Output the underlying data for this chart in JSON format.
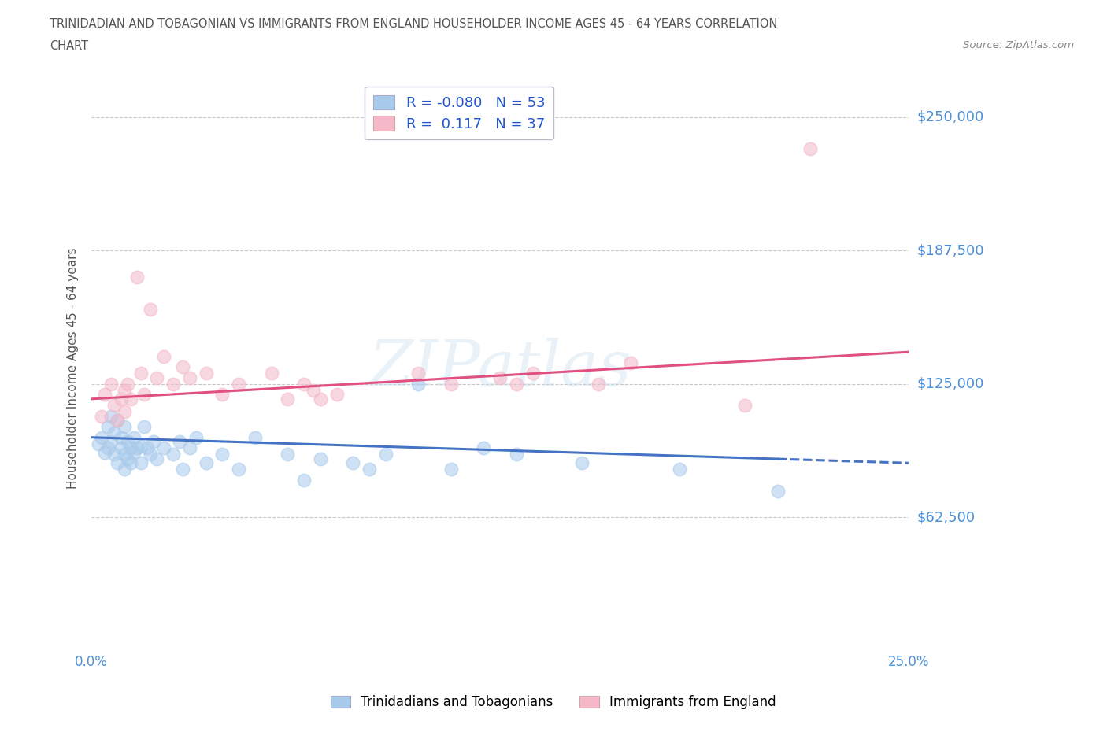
{
  "title_line1": "TRINIDADIAN AND TOBAGONIAN VS IMMIGRANTS FROM ENGLAND HOUSEHOLDER INCOME AGES 45 - 64 YEARS CORRELATION",
  "title_line2": "CHART",
  "source_text": "Source: ZipAtlas.com",
  "ylabel": "Householder Income Ages 45 - 64 years",
  "watermark": "ZIPatlas",
  "xlim": [
    0.0,
    0.25
  ],
  "ylim": [
    0,
    265000
  ],
  "yticks": [
    0,
    62500,
    125000,
    187500,
    250000
  ],
  "ytick_labels": [
    "",
    "$62,500",
    "$125,000",
    "$187,500",
    "$250,000"
  ],
  "xticks": [
    0.0,
    0.05,
    0.1,
    0.15,
    0.2,
    0.25
  ],
  "xtick_labels": [
    "0.0%",
    "",
    "",
    "",
    "",
    "25.0%"
  ],
  "blue_R": -0.08,
  "blue_N": 53,
  "pink_R": 0.117,
  "pink_N": 37,
  "blue_color": "#a8caeb",
  "pink_color": "#f4b8c8",
  "blue_line_color": "#4472c4",
  "pink_line_color": "#e05080",
  "axis_label_color": "#4a90d9",
  "title_color": "#555555",
  "grid_color": "#c8c8c8",
  "blue_scatter_x": [
    0.002,
    0.003,
    0.004,
    0.005,
    0.005,
    0.006,
    0.006,
    0.007,
    0.007,
    0.008,
    0.008,
    0.009,
    0.009,
    0.01,
    0.01,
    0.01,
    0.011,
    0.011,
    0.012,
    0.012,
    0.013,
    0.013,
    0.014,
    0.015,
    0.015,
    0.016,
    0.017,
    0.018,
    0.019,
    0.02,
    0.022,
    0.025,
    0.027,
    0.028,
    0.03,
    0.032,
    0.035,
    0.04,
    0.045,
    0.05,
    0.06,
    0.065,
    0.07,
    0.08,
    0.085,
    0.09,
    0.1,
    0.11,
    0.12,
    0.13,
    0.15,
    0.18,
    0.21
  ],
  "blue_scatter_y": [
    97000,
    100000,
    93000,
    105000,
    95000,
    110000,
    98000,
    92000,
    102000,
    88000,
    108000,
    95000,
    100000,
    85000,
    92000,
    105000,
    90000,
    98000,
    88000,
    95000,
    93000,
    100000,
    95000,
    88000,
    96000,
    105000,
    95000,
    92000,
    98000,
    90000,
    95000,
    92000,
    98000,
    85000,
    95000,
    100000,
    88000,
    92000,
    85000,
    100000,
    92000,
    80000,
    90000,
    88000,
    85000,
    92000,
    125000,
    85000,
    95000,
    92000,
    88000,
    85000,
    75000
  ],
  "pink_scatter_x": [
    0.003,
    0.004,
    0.006,
    0.007,
    0.008,
    0.009,
    0.01,
    0.01,
    0.011,
    0.012,
    0.014,
    0.015,
    0.016,
    0.018,
    0.02,
    0.022,
    0.025,
    0.028,
    0.03,
    0.035,
    0.04,
    0.045,
    0.055,
    0.06,
    0.065,
    0.068,
    0.07,
    0.075,
    0.1,
    0.11,
    0.125,
    0.13,
    0.135,
    0.155,
    0.165,
    0.2,
    0.22
  ],
  "pink_scatter_y": [
    110000,
    120000,
    125000,
    115000,
    108000,
    118000,
    122000,
    112000,
    125000,
    118000,
    175000,
    130000,
    120000,
    160000,
    128000,
    138000,
    125000,
    133000,
    128000,
    130000,
    120000,
    125000,
    130000,
    118000,
    125000,
    122000,
    118000,
    120000,
    130000,
    125000,
    128000,
    125000,
    130000,
    125000,
    135000,
    115000,
    235000
  ],
  "blue_line_x0": 0.0,
  "blue_line_y0": 100000,
  "blue_line_x1": 0.25,
  "blue_line_y1": 88000,
  "pink_line_x0": 0.0,
  "pink_line_y0": 118000,
  "pink_line_x1": 0.25,
  "pink_line_y1": 140000,
  "legend_label_blue": "Trinidadians and Tobagonians",
  "legend_label_pink": "Immigrants from England"
}
